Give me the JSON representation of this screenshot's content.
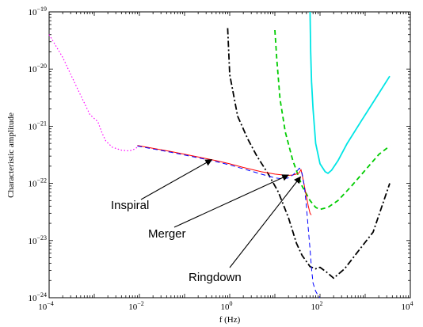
{
  "chart_data": {
    "type": "line",
    "xlabel": "f (Hz)",
    "ylabel": "Characteristic amplitude",
    "xscale": "log",
    "yscale": "log",
    "xlim": [
      0.0001,
      10000
    ],
    "ylim": [
      1e-24,
      1e-19
    ],
    "x_tick_labels": [
      {
        "value": 0.0001,
        "base": "10",
        "exp": "−4"
      },
      {
        "value": 0.01,
        "base": "10",
        "exp": "−2"
      },
      {
        "value": 1,
        "base": "10",
        "exp": "0"
      },
      {
        "value": 100,
        "base": "10",
        "exp": "2"
      },
      {
        "value": 10000,
        "base": "10",
        "exp": "4"
      }
    ],
    "y_tick_labels": [
      {
        "value": 1e-24,
        "base": "10",
        "exp": "−24"
      },
      {
        "value": 1e-23,
        "base": "10",
        "exp": "−23"
      },
      {
        "value": 1e-22,
        "base": "10",
        "exp": "−22"
      },
      {
        "value": 1e-21,
        "base": "10",
        "exp": "−21"
      },
      {
        "value": 1e-20,
        "base": "10",
        "exp": "−20"
      },
      {
        "value": 1e-19,
        "base": "10",
        "exp": "−19"
      }
    ],
    "grid": false,
    "series": [
      {
        "key": "magenta-dotted",
        "color": "#ff00ff",
        "style": "dotted",
        "x": [
          0.0001,
          0.0002,
          0.0004,
          0.0008,
          0.0012,
          0.0015,
          0.0018,
          0.0025,
          0.004,
          0.006,
          0.008,
          0.01
        ],
        "y": [
          4e-20,
          1.6e-20,
          5e-21,
          1.6e-21,
          1.2e-21,
          7.5e-22,
          5.5e-22,
          4.3e-22,
          3.8e-22,
          3.7e-22,
          4e-22,
          4.6e-22
        ]
      },
      {
        "key": "black-dashdot",
        "color": "#000000",
        "style": "dashdot",
        "x": [
          0.9,
          1.0,
          1.5,
          2.5,
          4,
          7,
          12,
          20,
          30,
          40,
          60,
          80,
          100,
          140,
          200,
          350,
          700,
          1500,
          3500
        ],
        "y": [
          5.2e-20,
          8e-21,
          1.5e-21,
          6e-22,
          3e-22,
          1.5e-22,
          7e-23,
          2.5e-23,
          9e-24,
          5.5e-24,
          3.5e-24,
          3.2e-24,
          3.4e-24,
          2.8e-24,
          2.2e-24,
          3.2e-24,
          6.5e-24,
          1.4e-23,
          1e-22
        ]
      },
      {
        "key": "green-dashed",
        "color": "#00cc00",
        "style": "dashed",
        "x": [
          10,
          11,
          13,
          17,
          25,
          40,
          60,
          80,
          100,
          150,
          250,
          500,
          1000,
          2000,
          3500
        ],
        "y": [
          4.8e-20,
          1.5e-20,
          3e-21,
          8e-22,
          2.5e-22,
          9e-23,
          5e-23,
          3.8e-23,
          3.5e-23,
          3.8e-23,
          5e-23,
          9e-23,
          1.7e-22,
          3.2e-22,
          4.5e-22
        ]
      },
      {
        "key": "cyan-solid",
        "color": "#00e5e5",
        "style": "solid",
        "x": [
          60,
          62,
          65,
          70,
          80,
          100,
          130,
          150,
          180,
          250,
          400,
          800,
          1500,
          3500
        ],
        "y": [
          1e-19,
          2e-20,
          6e-21,
          2e-21,
          5e-22,
          2.2e-22,
          1.6e-22,
          1.5e-22,
          1.7e-22,
          2.5e-22,
          5e-22,
          1.2e-21,
          2.6e-21,
          7.5e-21
        ]
      },
      {
        "key": "red-signal",
        "color": "#ff0000",
        "style": "solid",
        "x": [
          0.009,
          0.05,
          0.2,
          0.5,
          1,
          2,
          5,
          10,
          15,
          20,
          25,
          30,
          35,
          38,
          42,
          48,
          55,
          60,
          64
        ],
        "y": [
          4.6e-22,
          3.6e-22,
          2.9e-22,
          2.5e-22,
          2.2e-22,
          1.9e-22,
          1.6e-22,
          1.45e-22,
          1.4e-22,
          1.38e-22,
          1.4e-22,
          1.45e-22,
          1.55e-22,
          1.75e-22,
          1.2e-22,
          7e-23,
          4e-23,
          3e-23,
          2.8e-23
        ]
      },
      {
        "key": "blue-dashed-signal",
        "color": "#0000ff",
        "style": "dashed",
        "x": [
          0.009,
          0.05,
          0.2,
          0.5,
          1,
          2,
          5,
          10,
          15,
          20,
          25,
          30,
          35,
          40,
          45,
          50,
          55,
          60,
          65,
          70,
          80,
          90,
          100
        ],
        "y": [
          4.5e-22,
          3.5e-22,
          2.8e-22,
          2.4e-22,
          2.1e-22,
          1.8e-22,
          1.45e-22,
          1.25e-22,
          1.2e-22,
          1.25e-22,
          1.4e-22,
          1.6e-22,
          1.85e-22,
          1.5e-22,
          9e-23,
          4e-23,
          1.6e-23,
          7e-24,
          3.2e-24,
          1.8e-24,
          1.3e-24,
          1.1e-24,
          1e-24
        ]
      }
    ],
    "annotations": [
      {
        "key": "inspiral",
        "text": "Inspiral",
        "arrow_to": {
          "x": 0.4,
          "y": 2.6e-22
        }
      },
      {
        "key": "merger",
        "text": "Merger",
        "arrow_to": {
          "x": 20,
          "y": 1.4e-22
        }
      },
      {
        "key": "ringdown",
        "text": "Ringdown",
        "arrow_to": {
          "x": 37,
          "y": 1.3e-22
        }
      }
    ]
  }
}
